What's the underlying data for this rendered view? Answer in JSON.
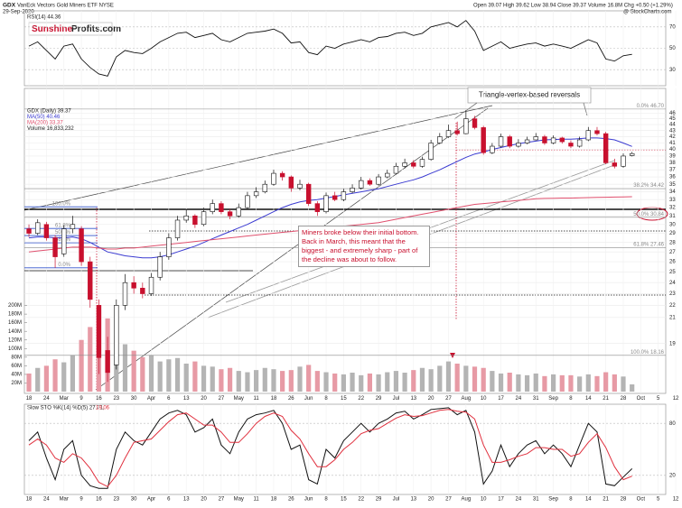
{
  "chart_data": {
    "type": "candlestick",
    "symbol": "GDX",
    "title": "VanEck Vectors Gold Miners ETF NYSE",
    "date": "29-Sep-2020",
    "quote": "Open 39.07 High 39.62 Low 38.94 Close 39.37 Volume 16.8M Chg +0.50 (+1.29%)",
    "source": "@ StockCharts.com",
    "logo": [
      "Sunshine",
      "Profits.com"
    ],
    "price_label": "GDX (Daily) 39.37",
    "volume_label": "Volume 16,833,232",
    "annotations": [
      "Triangle-vertex-based reversals",
      "Miners broke below their initial bottom. Back in March, this meant that the biggest - and extremely sharp -  part of the decline was about to follow."
    ],
    "log_scale": true,
    "grid": true,
    "colors": {
      "up": "#111111",
      "up_fill": "#ffffff",
      "down": "#c8102e",
      "volume_up": "#b4b4b4",
      "volume_down": "#e79aa5",
      "fib": "#8a8a8a",
      "fib_left": "#3355cc"
    },
    "categories": [
      "18",
      null,
      "24",
      null,
      "Mar",
      null,
      "9",
      null,
      "16",
      null,
      "23",
      null,
      "30",
      null,
      "Apr",
      null,
      "6",
      null,
      "13",
      null,
      "20",
      null,
      "27",
      null,
      "May",
      null,
      "11",
      null,
      "18",
      null,
      "26",
      null,
      "Jun",
      null,
      "8",
      null,
      "15",
      null,
      "22",
      null,
      "29",
      null,
      "Jul",
      null,
      "13",
      null,
      "20",
      null,
      "27",
      null,
      "Aug",
      null,
      "10",
      null,
      "17",
      null,
      "24",
      null,
      "31",
      null,
      "Sep",
      null,
      "8",
      null,
      "14",
      null,
      "21",
      null,
      "28",
      null,
      "Oct",
      null,
      "5",
      null,
      "12",
      null
    ],
    "open": [
      29.5,
      29.0,
      30.0,
      28.5,
      26.8,
      29.5,
      29.5,
      26.0,
      22.0,
      18.5,
      17.5,
      22.0,
      24.0,
      23.5,
      23.0,
      24.5,
      26.5,
      28.5,
      30.5,
      31.0,
      30.0,
      31.5,
      32.5,
      31.5,
      31.0,
      32.0,
      33.5,
      34.0,
      35.0,
      36.5,
      36.0,
      34.5,
      35.0,
      32.5,
      31.5,
      33.5,
      33.0,
      34.0,
      34.5,
      35.5,
      35.0,
      36.0,
      36.5,
      37.5,
      38.0,
      37.5,
      38.5,
      41.0,
      42.0,
      43.0,
      42.5,
      45.0,
      43.5,
      39.5,
      40.5,
      42.0,
      40.5,
      41.0,
      41.5,
      42.0,
      41.0,
      41.8,
      41.0,
      40.5,
      41.5,
      43.0,
      42.5,
      38.0,
      37.5,
      39.07,
      null,
      null,
      null,
      null,
      null,
      null
    ],
    "high": [
      30.0,
      30.6,
      30.3,
      28.8,
      29.9,
      31.0,
      29.8,
      26.5,
      22.5,
      19.5,
      22.5,
      24.8,
      24.6,
      24.0,
      24.9,
      27.0,
      29.0,
      31.0,
      31.8,
      31.2,
      32.0,
      33.0,
      32.8,
      31.8,
      32.5,
      34.0,
      34.6,
      35.5,
      37.0,
      36.8,
      36.2,
      35.6,
      35.2,
      32.8,
      33.9,
      34.0,
      34.4,
      35.0,
      36.0,
      35.8,
      36.4,
      37.0,
      38.0,
      38.6,
      38.4,
      38.9,
      41.5,
      42.6,
      44.0,
      44.5,
      46.5,
      45.5,
      43.8,
      41.0,
      42.5,
      42.3,
      41.6,
      42.0,
      42.6,
      42.3,
      42.2,
      42.0,
      41.4,
      42.0,
      43.6,
      43.6,
      42.8,
      38.6,
      39.4,
      39.62,
      null,
      null,
      null,
      null,
      null,
      null
    ],
    "low": [
      28.6,
      28.8,
      28.2,
      25.4,
      26.5,
      29.0,
      25.6,
      21.8,
      16.9,
      16.4,
      17.2,
      21.6,
      23.0,
      22.6,
      22.8,
      24.2,
      26.2,
      28.2,
      30.2,
      29.6,
      29.8,
      31.2,
      31.2,
      30.6,
      30.8,
      31.8,
      33.2,
      33.8,
      34.8,
      35.5,
      34.0,
      34.2,
      32.2,
      31.0,
      31.3,
      32.8,
      32.8,
      33.8,
      34.3,
      34.8,
      34.8,
      35.8,
      36.3,
      37.2,
      37.2,
      37.3,
      38.3,
      40.8,
      41.8,
      42.2,
      42.4,
      43.2,
      39.2,
      39.3,
      40.3,
      40.2,
      40.3,
      40.8,
      41.4,
      40.7,
      40.8,
      40.9,
      40.2,
      40.3,
      41.3,
      42.2,
      37.8,
      37.2,
      37.3,
      38.94,
      null,
      null,
      null,
      null,
      null,
      null
    ],
    "close": [
      29.0,
      30.2,
      28.5,
      26.5,
      29.5,
      30.0,
      26.0,
      22.5,
      18.0,
      17.0,
      22.0,
      24.0,
      23.5,
      23.0,
      24.5,
      26.5,
      28.5,
      30.5,
      31.0,
      30.0,
      31.5,
      32.5,
      31.5,
      31.0,
      32.0,
      33.5,
      34.0,
      35.0,
      36.5,
      36.0,
      34.5,
      35.0,
      32.5,
      31.5,
      33.5,
      33.0,
      34.0,
      34.5,
      35.5,
      35.0,
      36.0,
      36.5,
      37.5,
      38.0,
      37.5,
      38.5,
      41.0,
      42.0,
      43.0,
      42.5,
      45.0,
      43.5,
      39.5,
      40.5,
      42.0,
      40.5,
      41.0,
      41.5,
      42.0,
      41.0,
      41.8,
      41.2,
      40.5,
      41.5,
      43.0,
      42.5,
      38.0,
      37.5,
      39.0,
      39.37,
      null,
      null,
      null,
      null,
      null,
      null
    ],
    "volume": [
      42,
      55,
      60,
      75,
      68,
      85,
      120,
      150,
      190,
      170,
      130,
      110,
      95,
      80,
      85,
      70,
      75,
      78,
      65,
      70,
      60,
      58,
      52,
      55,
      48,
      45,
      50,
      55,
      52,
      48,
      50,
      58,
      62,
      48,
      45,
      42,
      40,
      44,
      38,
      42,
      40,
      45,
      48,
      44,
      50,
      55,
      52,
      60,
      70,
      65,
      60,
      58,
      55,
      48,
      42,
      44,
      40,
      38,
      42,
      36,
      40,
      38,
      38,
      35,
      40,
      36,
      45,
      40,
      35,
      16.8,
      null,
      null,
      null,
      null,
      null,
      null
    ],
    "series": [
      {
        "name": "MA(50) 40.46",
        "color": "#3b3bd1",
        "values": [
          28.5,
          28.6,
          28.6,
          28.5,
          28.5,
          28.6,
          28.4,
          28.0,
          27.5,
          27.0,
          26.8,
          26.6,
          26.5,
          26.4,
          26.4,
          26.5,
          26.7,
          27.0,
          27.3,
          27.6,
          28.0,
          28.4,
          28.8,
          29.2,
          29.6,
          30.0,
          30.5,
          31.0,
          31.5,
          32.0,
          32.4,
          32.7,
          32.9,
          33.0,
          33.2,
          33.4,
          33.6,
          33.8,
          34.0,
          34.2,
          34.4,
          34.7,
          35.0,
          35.3,
          35.6,
          36.0,
          36.5,
          37.0,
          37.6,
          38.2,
          38.8,
          39.3,
          39.6,
          40.0,
          40.3,
          40.6,
          40.9,
          41.1,
          41.3,
          41.5,
          41.55,
          41.6,
          41.6,
          41.7,
          41.8,
          41.8,
          41.7,
          41.5,
          41.0,
          40.46,
          null,
          null,
          null,
          null,
          null,
          null
        ]
      },
      {
        "name": "MA(200) 33.37",
        "color": "#e0506e",
        "values": [
          27.0,
          27.1,
          27.2,
          27.3,
          27.4,
          27.5,
          27.5,
          27.5,
          27.4,
          27.3,
          27.3,
          27.4,
          27.4,
          27.5,
          27.6,
          27.7,
          27.8,
          27.9,
          28.0,
          28.1,
          28.2,
          28.3,
          28.4,
          28.5,
          28.6,
          28.7,
          28.8,
          28.9,
          29.0,
          29.1,
          29.2,
          29.3,
          29.4,
          29.5,
          29.6,
          29.7,
          29.8,
          29.9,
          30.0,
          30.1,
          30.2,
          30.4,
          30.6,
          30.8,
          31.0,
          31.2,
          31.4,
          31.6,
          31.8,
          32.0,
          32.2,
          32.4,
          32.5,
          32.6,
          32.7,
          32.8,
          32.9,
          33.0,
          33.1,
          33.15,
          33.17,
          33.19,
          33.2,
          33.22,
          33.25,
          33.28,
          33.3,
          33.32,
          33.35,
          33.37,
          null,
          null,
          null,
          null,
          null,
          null
        ]
      }
    ],
    "ylim": [
      15.8,
      50.2
    ],
    "yticks": [
      46,
      45,
      44,
      43,
      42,
      41,
      40,
      39,
      38,
      37,
      36,
      35,
      34,
      33,
      32,
      31,
      30,
      29,
      28,
      27,
      26,
      25,
      24,
      23,
      22,
      21,
      19
    ],
    "volume_ylim": [
      0,
      700
    ],
    "volume_ticks": [
      {
        "value": 200,
        "label": "200M"
      },
      {
        "value": 180,
        "label": "180M"
      },
      {
        "value": 160,
        "label": "160M"
      },
      {
        "value": 140,
        "label": "140M"
      },
      {
        "value": 120,
        "label": "120M"
      },
      {
        "value": 100,
        "label": "100M"
      },
      {
        "value": 80,
        "label": "80M"
      },
      {
        "value": 60,
        "label": "60M"
      },
      {
        "value": 40,
        "label": "40M"
      },
      {
        "value": 20,
        "label": "20M"
      }
    ],
    "fib_levels": [
      {
        "value": 46.7,
        "label": "0.0% 46.70"
      },
      {
        "value": 34.42,
        "label": "38.2% 34.42"
      },
      {
        "value": 30.84,
        "label": "50.0% 30.84"
      },
      {
        "value": 27.46,
        "label": "61.8% 27.46"
      },
      {
        "value": 18.16,
        "label": "100.0% 18.16"
      }
    ],
    "fib_left": [
      {
        "value": 32.1,
        "label": "100.0%"
      },
      {
        "value": 29.54,
        "label": "61.8%"
      },
      {
        "value": 28.75,
        "label": "50.0%"
      },
      {
        "value": 27.96,
        "label": "38.2%"
      },
      {
        "value": 25.4,
        "label": "0.0%"
      }
    ],
    "rsi": {
      "label": "RSI(14) 44.36",
      "color": "#111111",
      "ylim": [
        15,
        85
      ],
      "yticks": [
        70,
        50,
        30
      ],
      "values": [
        52,
        56,
        48,
        40,
        52,
        54,
        40,
        32,
        26,
        24,
        42,
        48,
        46,
        45,
        50,
        56,
        60,
        64,
        65,
        60,
        62,
        64,
        58,
        56,
        60,
        64,
        65,
        66,
        68,
        64,
        55,
        56,
        46,
        44,
        52,
        50,
        54,
        56,
        58,
        56,
        60,
        61,
        64,
        65,
        62,
        64,
        70,
        72,
        74,
        70,
        76,
        66,
        48,
        52,
        56,
        50,
        52,
        54,
        55,
        52,
        54,
        52,
        50,
        54,
        58,
        55,
        40,
        38,
        43,
        44.36,
        null,
        null,
        null,
        null,
        null,
        null
      ]
    },
    "stochastic": {
      "label": "Slow STO %K(14) %D(5) 27.71,",
      "d_label": "19.06",
      "ylim": [
        0,
        100
      ],
      "yticks": [
        80,
        20
      ],
      "series": [
        {
          "name": "%K",
          "color": "#111111",
          "values": [
            60,
            70,
            40,
            15,
            50,
            60,
            20,
            8,
            5,
            5,
            50,
            70,
            60,
            55,
            70,
            85,
            92,
            95,
            90,
            70,
            75,
            85,
            55,
            45,
            70,
            85,
            90,
            92,
            95,
            80,
            50,
            55,
            15,
            10,
            50,
            40,
            60,
            70,
            80,
            70,
            80,
            85,
            92,
            94,
            85,
            90,
            96,
            97,
            98,
            90,
            95,
            70,
            10,
            25,
            55,
            30,
            45,
            55,
            60,
            45,
            55,
            45,
            30,
            55,
            80,
            70,
            10,
            8,
            18,
            27.71,
            null,
            null,
            null,
            null,
            null,
            null
          ]
        },
        {
          "name": "%D",
          "color": "#e0303e",
          "values": [
            55,
            62,
            55,
            40,
            35,
            45,
            40,
            28,
            12,
            7,
            20,
            40,
            58,
            60,
            62,
            72,
            82,
            90,
            92,
            85,
            78,
            78,
            70,
            58,
            58,
            68,
            80,
            88,
            92,
            88,
            72,
            62,
            45,
            30,
            30,
            38,
            50,
            58,
            68,
            72,
            74,
            80,
            86,
            90,
            88,
            89,
            92,
            95,
            96,
            94,
            93,
            85,
            55,
            35,
            35,
            38,
            42,
            45,
            52,
            52,
            50,
            50,
            42,
            45,
            58,
            68,
            52,
            30,
            15,
            19.06,
            null,
            null,
            null,
            null,
            null,
            null
          ]
        }
      ]
    }
  }
}
